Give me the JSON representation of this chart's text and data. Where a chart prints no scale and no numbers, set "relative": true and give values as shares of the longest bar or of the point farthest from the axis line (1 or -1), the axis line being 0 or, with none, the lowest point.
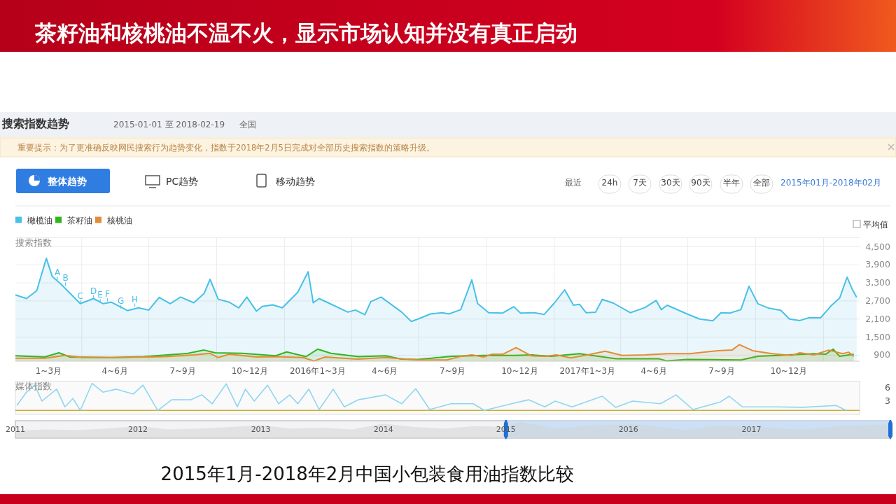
{
  "chart_data": [
    {
      "type": "other",
      "title": "茶籽油和核桃油不温不火，显示市场认知并没有真正启动",
      "annotations": [
        "搜索指数趋势",
        "2015-01-01 至 2018-02-19",
        "全国",
        "重要提示：为了更准确反映网民搜索行为趋势变化，指数于2018年2月5日完成对全部历史搜索指数的策略升级。",
        "整体趋势",
        "PC趋势",
        "移动趋势",
        "最近",
        "24h",
        "7天",
        "30天",
        "90天",
        "半年",
        "全部",
        "2015年01月-2018年02月",
        "平均值",
        "2015年1月-2018年2月中国小包装食用油指数比较"
      ]
    },
    {
      "type": "area",
      "ylabel": "搜索指数",
      "xlim": [
        "2015-01-01",
        "2018-02-19"
      ],
      "ylim": [
        700,
        4800
      ],
      "xticks": [
        {
          "value": "2015-02-15",
          "label": "1~3月"
        },
        {
          "value": "2015-04-01",
          "label": null
        },
        {
          "value": "2015-05-16",
          "label": "4~6月"
        },
        {
          "value": "2015-07-01",
          "label": null
        },
        {
          "value": "2015-08-16",
          "label": "7~9月"
        },
        {
          "value": "2015-10-01",
          "label": null
        },
        {
          "value": "2015-11-15",
          "label": "10~12月"
        },
        {
          "value": "2016-01-01",
          "label": null
        },
        {
          "value": "2016-02-15",
          "label": "2016年1~3月"
        },
        {
          "value": "2016-04-01",
          "label": null
        },
        {
          "value": "2016-05-16",
          "label": "4~6月"
        },
        {
          "value": "2016-07-01",
          "label": null
        },
        {
          "value": "2016-08-16",
          "label": "7~9月"
        },
        {
          "value": "2016-10-01",
          "label": null
        },
        {
          "value": "2016-11-15",
          "label": "10~12月"
        },
        {
          "value": "2017-01-01",
          "label": null
        },
        {
          "value": "2017-02-15",
          "label": "2017年1~3月"
        },
        {
          "value": "2017-04-01",
          "label": null
        },
        {
          "value": "2017-05-16",
          "label": "4~6月"
        },
        {
          "value": "2017-07-01",
          "label": null
        },
        {
          "value": "2017-08-16",
          "label": "7~9月"
        },
        {
          "value": "2017-10-01",
          "label": null
        },
        {
          "value": "2017-11-15",
          "label": "10~12月"
        },
        {
          "value": "2018-01-01",
          "label": null
        }
      ],
      "yticks": [
        {
          "value": 900,
          "label": "900"
        },
        {
          "value": 1500,
          "label": "1,500"
        },
        {
          "value": 2100,
          "label": "2,100"
        },
        {
          "value": 2700,
          "label": "2,700"
        },
        {
          "value": 3300,
          "label": "3,300"
        },
        {
          "value": 3900,
          "label": "3,900"
        },
        {
          "value": 4500,
          "label": "4,500"
        }
      ],
      "grid": true,
      "legend": "top left",
      "series": [
        {
          "name": "橄榄油",
          "color": "#48c0e8",
          "x": [
            "2015-01-01",
            "2015-01-16",
            "2015-01-30",
            "2015-02-12",
            "2015-02-20",
            "2015-03-03",
            "2015-03-30",
            "2015-04-17",
            "2015-04-30",
            "2015-05-11",
            "2015-06-02",
            "2015-06-17",
            "2015-07-01",
            "2015-07-15",
            "2015-07-30",
            "2015-08-13",
            "2015-08-31",
            "2015-09-14",
            "2015-09-22",
            "2015-10-03",
            "2015-10-18",
            "2015-10-31",
            "2015-11-11",
            "2015-11-24",
            "2015-12-02",
            "2015-12-16",
            "2015-12-29",
            "2016-01-19",
            "2016-02-02",
            "2016-02-09",
            "2016-02-17",
            "2016-02-29",
            "2016-03-27",
            "2016-04-06",
            "2016-04-19",
            "2016-04-27",
            "2016-05-11",
            "2016-06-08",
            "2016-06-21",
            "2016-06-30",
            "2016-07-17",
            "2016-08-02",
            "2016-08-11",
            "2016-08-27",
            "2016-09-11",
            "2016-09-19",
            "2016-10-04",
            "2016-10-23",
            "2016-11-07",
            "2016-11-16",
            "2016-12-05",
            "2016-12-18",
            "2017-01-01",
            "2017-01-15",
            "2017-01-27",
            "2017-02-04",
            "2017-02-13",
            "2017-02-26",
            "2017-03-07",
            "2017-03-22",
            "2017-04-14",
            "2017-05-04",
            "2017-05-19",
            "2017-05-26",
            "2017-06-03",
            "2017-06-30",
            "2017-07-17",
            "2017-08-04",
            "2017-08-15",
            "2017-08-27",
            "2017-09-11",
            "2017-09-22",
            "2017-10-04",
            "2017-10-19",
            "2017-11-04",
            "2017-11-16",
            "2017-11-30",
            "2017-12-12",
            "2017-12-28",
            "2018-01-11",
            "2018-01-23",
            "2018-02-02",
            "2018-02-09",
            "2018-02-15"
          ],
          "values": [
            2900,
            2780,
            3040,
            4120,
            3510,
            3280,
            2610,
            2780,
            2610,
            2660,
            2380,
            2470,
            2400,
            2820,
            2610,
            2830,
            2640,
            2950,
            3420,
            2760,
            2660,
            2470,
            2830,
            2360,
            2520,
            2570,
            2470,
            2990,
            3670,
            2640,
            2780,
            2640,
            2330,
            2400,
            2240,
            2680,
            2830,
            2330,
            2020,
            2100,
            2270,
            2310,
            2270,
            2410,
            3400,
            2610,
            2310,
            2300,
            2510,
            2300,
            2310,
            2250,
            2630,
            3070,
            2560,
            2590,
            2310,
            2330,
            2750,
            2630,
            2310,
            2480,
            2720,
            2410,
            2560,
            2270,
            2100,
            2040,
            2310,
            2300,
            2410,
            3190,
            2610,
            2460,
            2390,
            2100,
            2050,
            2140,
            2140,
            2530,
            2800,
            3490,
            3090,
            2820
          ]
        },
        {
          "name": "茶籽油",
          "color": "#33b51f",
          "x": [
            "2015-01-01",
            "2015-02-10",
            "2015-03-01",
            "2015-03-16",
            "2015-05-11",
            "2015-06-24",
            "2015-08-23",
            "2015-09-14",
            "2015-09-29",
            "2015-11-05",
            "2015-12-20",
            "2016-01-04",
            "2016-01-30",
            "2016-02-15",
            "2016-03-04",
            "2016-04-10",
            "2016-05-17",
            "2016-06-08",
            "2016-06-30",
            "2016-08-15",
            "2016-09-27",
            "2016-11-08",
            "2016-12-01",
            "2016-12-28",
            "2017-02-04",
            "2017-03-26",
            "2017-05-23",
            "2017-06-03",
            "2017-06-30",
            "2017-09-11",
            "2017-10-04",
            "2017-10-31",
            "2017-12-19",
            "2018-01-04",
            "2018-01-14",
            "2018-01-23",
            "2018-02-11"
          ],
          "values": [
            880,
            840,
            980,
            840,
            820,
            850,
            960,
            1070,
            980,
            960,
            880,
            1010,
            850,
            1100,
            960,
            850,
            880,
            770,
            760,
            860,
            890,
            890,
            910,
            860,
            950,
            780,
            780,
            710,
            760,
            740,
            860,
            890,
            950,
            930,
            1100,
            860,
            930
          ]
        },
        {
          "name": "核桃油",
          "color": "#e68a35",
          "x": [
            "2015-01-01",
            "2015-02-10",
            "2015-03-09",
            "2015-04-03",
            "2015-05-22",
            "2015-07-24",
            "2015-08-31",
            "2015-09-22",
            "2015-10-03",
            "2015-10-18",
            "2015-11-24",
            "2015-12-20",
            "2016-01-26",
            "2016-02-10",
            "2016-02-25",
            "2016-04-10",
            "2016-05-17",
            "2016-06-30",
            "2016-08-08",
            "2016-08-27",
            "2016-09-11",
            "2016-09-27",
            "2016-10-08",
            "2016-10-23",
            "2016-11-10",
            "2016-12-01",
            "2016-12-20",
            "2017-01-04",
            "2017-01-23",
            "2017-02-15",
            "2017-03-11",
            "2017-04-03",
            "2017-05-04",
            "2017-06-03",
            "2017-07-04",
            "2017-08-11",
            "2017-08-30",
            "2017-09-09",
            "2017-09-27",
            "2017-10-23",
            "2017-11-19",
            "2017-11-30",
            "2017-12-19",
            "2018-01-08",
            "2018-01-27",
            "2018-02-04",
            "2018-02-11"
          ],
          "values": [
            800,
            800,
            890,
            820,
            820,
            850,
            910,
            960,
            820,
            930,
            840,
            850,
            820,
            710,
            840,
            770,
            820,
            740,
            740,
            860,
            910,
            840,
            930,
            930,
            1150,
            880,
            860,
            910,
            810,
            910,
            1030,
            890,
            910,
            950,
            950,
            1050,
            1070,
            1250,
            1050,
            950,
            890,
            980,
            910,
            1070,
            950,
            1000,
            860
          ]
        }
      ],
      "annotations": [
        {
          "text": "A",
          "x": "2015-02-27",
          "y": 3400
        },
        {
          "text": "B",
          "x": "2015-03-10",
          "y": 3200
        },
        {
          "text": "C",
          "x": "2015-03-30",
          "y": 2610
        },
        {
          "text": "D",
          "x": "2015-04-17",
          "y": 2780
        },
        {
          "text": "E",
          "x": "2015-04-26",
          "y": 2650
        },
        {
          "text": "F",
          "x": "2015-05-06",
          "y": 2680
        },
        {
          "text": "G",
          "x": "2015-05-24",
          "y": 2450
        },
        {
          "text": "H",
          "x": "2015-06-12",
          "y": 2500
        }
      ]
    },
    {
      "type": "line",
      "ylabel": "媒体指数",
      "xlim": [
        "2015-01-01",
        "2018-02-19"
      ],
      "ylim": [
        0,
        7.5
      ],
      "yticks": [
        3,
        6
      ],
      "tick_labels": "y",
      "series": [
        {
          "color": "#c9b03a",
          "x": [
            "2015-01-01",
            "2018-02-19"
          ],
          "values": [
            0.9,
            0.9
          ]
        },
        {
          "color": "#8fd6f0",
          "x": [
            "2015-01-03",
            "2015-01-16",
            "2015-01-27",
            "2015-02-06",
            "2015-02-26",
            "2015-03-09",
            "2015-03-20",
            "2015-03-30",
            "2015-04-15",
            "2015-04-30",
            "2015-05-18",
            "2015-06-10",
            "2015-06-23",
            "2015-07-13",
            "2015-08-01",
            "2015-08-27",
            "2015-09-11",
            "2015-09-25",
            "2015-10-14",
            "2015-10-29",
            "2015-11-09",
            "2015-11-21",
            "2015-12-09",
            "2015-12-24",
            "2016-01-08",
            "2016-01-19",
            "2016-02-03",
            "2016-02-17",
            "2016-03-07",
            "2016-03-22",
            "2016-04-10",
            "2016-05-17",
            "2016-06-08",
            "2016-06-27",
            "2016-07-16",
            "2016-08-14",
            "2016-09-13",
            "2016-09-28",
            "2016-11-04",
            "2016-11-27",
            "2016-12-19",
            "2017-01-02",
            "2017-01-25",
            "2017-03-07",
            "2017-03-25",
            "2017-04-17",
            "2017-05-25",
            "2017-06-15",
            "2017-07-08",
            "2017-08-14",
            "2017-08-26",
            "2017-09-13",
            "2017-10-28",
            "2017-12-04",
            "2018-01-18",
            "2018-02-01"
          ],
          "values": [
            2.0,
            5.0,
            6.6,
            3.0,
            5.7,
            1.7,
            3.6,
            0.9,
            7.0,
            5.0,
            5.7,
            4.6,
            6.6,
            0.9,
            3.3,
            3.3,
            4.4,
            2.4,
            6.9,
            1.7,
            5.7,
            3.0,
            6.6,
            2.4,
            4.4,
            2.4,
            5.7,
            1.1,
            5.7,
            1.7,
            3.3,
            4.4,
            2.4,
            5.8,
            1.1,
            2.4,
            2.4,
            0.9,
            2.4,
            3.3,
            1.7,
            3.0,
            1.7,
            4.1,
            1.6,
            3.0,
            2.4,
            4.4,
            1.1,
            2.8,
            4.1,
            1.7,
            1.7,
            1.6,
            2.0,
            0.9
          ]
        }
      ]
    },
    {
      "type": "area",
      "relative": true,
      "xlim": [
        "2011-01-01",
        "2018-02-19"
      ],
      "tick_labels": "x",
      "xticks": [
        {
          "value": "2011-01-01",
          "label": "2011"
        },
        {
          "value": "2012-01-01",
          "label": "2012"
        },
        {
          "value": "2013-01-01",
          "label": "2013"
        },
        {
          "value": "2014-01-01",
          "label": "2014"
        },
        {
          "value": "2015-01-01",
          "label": "2015"
        },
        {
          "value": "2016-01-01",
          "label": "2016"
        },
        {
          "value": "2017-01-01",
          "label": "2017"
        }
      ],
      "bands": [
        {
          "axis": "x",
          "from": "2015-01-01",
          "to": "2018-02-19",
          "color": "#c6def5"
        }
      ],
      "series": [
        {
          "color": "#d3d3d3",
          "x": [
            "2011-01-01",
            "2011-04-01",
            "2011-07-01",
            "2011-10-01",
            "2012-01-01",
            "2012-04-01",
            "2012-07-01",
            "2012-10-01",
            "2013-01-01",
            "2013-04-01",
            "2013-07-01",
            "2013-10-01",
            "2014-01-01",
            "2014-04-01",
            "2014-07-01",
            "2014-10-01",
            "2015-01-01",
            "2015-02-12",
            "2015-06-01",
            "2015-09-22",
            "2016-02-02",
            "2016-06-21",
            "2016-09-11",
            "2017-01-15",
            "2017-06-01",
            "2017-09-22",
            "2018-02-02",
            "2018-02-19"
          ],
          "values": [
            0.45,
            0.55,
            0.5,
            0.6,
            0.75,
            0.55,
            0.6,
            0.7,
            0.8,
            0.6,
            0.65,
            0.55,
            0.9,
            0.7,
            0.6,
            0.75,
            0.7,
            1,
            0.6,
            0.8,
            0.85,
            0.5,
            0.75,
            0.7,
            0.55,
            0.75,
            0.85,
            0.65
          ]
        }
      ]
    }
  ]
}
